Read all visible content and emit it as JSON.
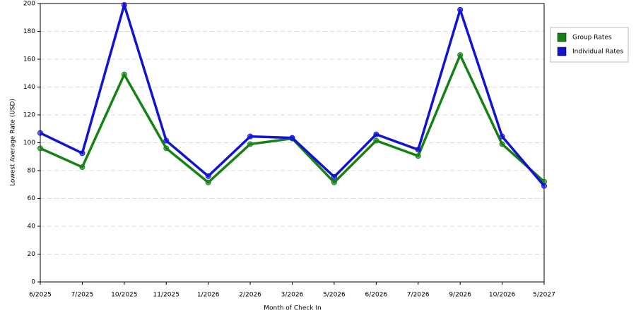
{
  "chart_data": {
    "type": "line",
    "x_label": "Month of Check In",
    "y_label": "Lowest Average Rate (USD)",
    "categories": [
      "6/2025",
      "7/2025",
      "10/2025",
      "11/2025",
      "1/2026",
      "2/2026",
      "3/2026",
      "5/2026",
      "6/2026",
      "7/2026",
      "9/2026",
      "10/2026",
      "5/2027"
    ],
    "series": [
      {
        "name": "Group Rates",
        "color": "#168216",
        "values": [
          96,
          82.5,
          149,
          96,
          71.5,
          99,
          103,
          71.5,
          101.5,
          90.5,
          163,
          99,
          72
        ]
      },
      {
        "name": "Individual Rates",
        "color": "#1212d2",
        "values": [
          107,
          92.5,
          199,
          101.5,
          76,
          104.5,
          103.5,
          75.5,
          106,
          95,
          195.5,
          104.5,
          69
        ]
      }
    ],
    "ylim": [
      0,
      200
    ],
    "yticks": [
      0,
      20,
      40,
      60,
      80,
      100,
      120,
      140,
      160,
      180,
      200
    ],
    "grid": true,
    "legend": "right"
  }
}
